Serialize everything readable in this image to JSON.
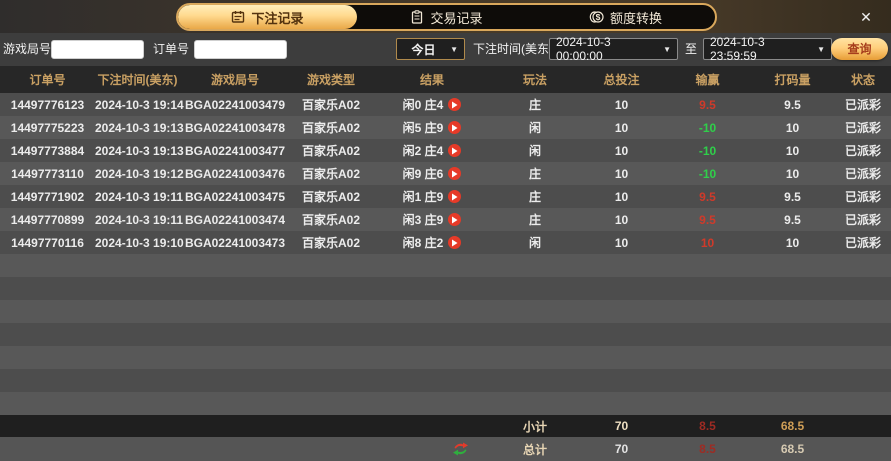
{
  "window": {
    "close_label": "✕"
  },
  "tabs": [
    {
      "label": "下注记录",
      "icon": "bet-records-icon",
      "active": true
    },
    {
      "label": "交易记录",
      "icon": "transaction-records-icon",
      "active": false
    },
    {
      "label": "额度转换",
      "icon": "credit-transfer-icon",
      "active": false
    }
  ],
  "filters": {
    "game_round_label": "游戏局号",
    "order_no_label": "订单号",
    "game_round_value": "",
    "order_no_value": "",
    "quick_range_value": "今日",
    "bet_time_label": "下注时间(美东)",
    "date_from": "2024-10-3 00:00:00",
    "to_label": "至",
    "date_to": "2024-10-3 23:59:59",
    "query_label": "查询",
    "caret": "▼"
  },
  "table": {
    "headers": [
      "订单号",
      "下注时间(美东)",
      "游戏局号",
      "游戏类型",
      "结果",
      "玩法",
      "总投注",
      "输赢",
      "打码量",
      "状态"
    ],
    "row_fields": [
      "order",
      "time",
      "round",
      "game",
      "result",
      "play",
      "bet",
      "winloss",
      "volume",
      "status"
    ],
    "rows": [
      {
        "order": "14497776123",
        "time": "2024-10-3 19:14",
        "round": "BGA02241003479",
        "game": "百家乐A02",
        "result": "闲0 庄4",
        "play": "庄",
        "bet": "10",
        "winloss": "9.5",
        "winloss_color": "red",
        "volume": "9.5",
        "status": "已派彩"
      },
      {
        "order": "14497775223",
        "time": "2024-10-3 19:13",
        "round": "BGA02241003478",
        "game": "百家乐A02",
        "result": "闲5 庄9",
        "play": "闲",
        "bet": "10",
        "winloss": "-10",
        "winloss_color": "green",
        "volume": "10",
        "status": "已派彩"
      },
      {
        "order": "14497773884",
        "time": "2024-10-3 19:13",
        "round": "BGA02241003477",
        "game": "百家乐A02",
        "result": "闲2 庄4",
        "play": "闲",
        "bet": "10",
        "winloss": "-10",
        "winloss_color": "green",
        "volume": "10",
        "status": "已派彩"
      },
      {
        "order": "14497773110",
        "time": "2024-10-3 19:12",
        "round": "BGA02241003476",
        "game": "百家乐A02",
        "result": "闲9 庄6",
        "play": "庄",
        "bet": "10",
        "winloss": "-10",
        "winloss_color": "green",
        "volume": "10",
        "status": "已派彩"
      },
      {
        "order": "14497771902",
        "time": "2024-10-3 19:11",
        "round": "BGA02241003475",
        "game": "百家乐A02",
        "result": "闲1 庄9",
        "play": "庄",
        "bet": "10",
        "winloss": "9.5",
        "winloss_color": "red",
        "volume": "9.5",
        "status": "已派彩"
      },
      {
        "order": "14497770899",
        "time": "2024-10-3 19:11",
        "round": "BGA02241003474",
        "game": "百家乐A02",
        "result": "闲3 庄9",
        "play": "庄",
        "bet": "10",
        "winloss": "9.5",
        "winloss_color": "red",
        "volume": "9.5",
        "status": "已派彩"
      },
      {
        "order": "14497770116",
        "time": "2024-10-3 19:10",
        "round": "BGA02241003473",
        "game": "百家乐A02",
        "result": "闲8 庄2",
        "play": "闲",
        "bet": "10",
        "winloss": "10",
        "winloss_color": "red",
        "volume": "10",
        "status": "已派彩"
      }
    ],
    "empty_row_count": 7
  },
  "footer": {
    "subtotal": {
      "label": "小计",
      "bet": "70",
      "winloss": "8.5",
      "volume": "68.5"
    },
    "total": {
      "label": "总计",
      "bet": "70",
      "winloss": "8.5",
      "volume": "68.5"
    }
  },
  "colors": {
    "accent_gold": "#e2a94f",
    "win_red": "#d03a2a",
    "loss_green": "#2fcf4a",
    "footer_red": "#9e2b23",
    "volume_gold": "#cf9e56"
  }
}
